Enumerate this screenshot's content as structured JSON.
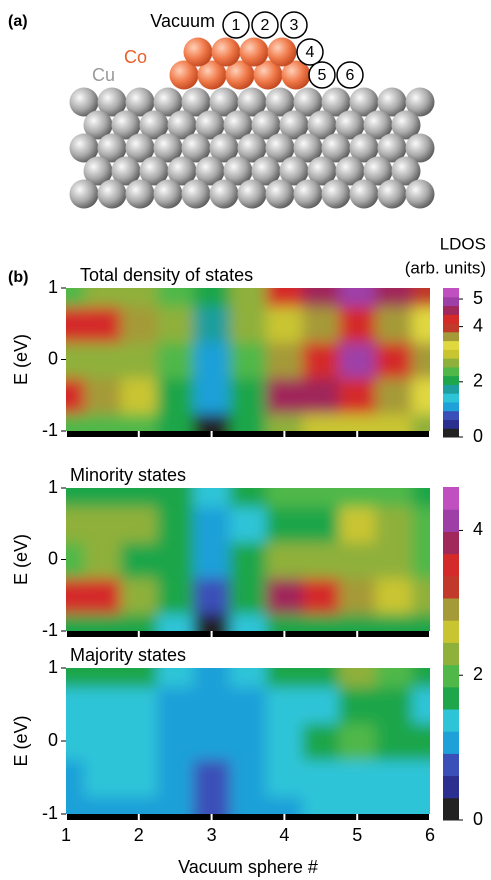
{
  "figure_a": {
    "label": "(a)",
    "vacuum": "Vacuum",
    "co": "Co",
    "cu": "Cu",
    "spheres": [
      "1",
      "2",
      "3",
      "4",
      "5",
      "6"
    ]
  },
  "figure_b_label": "(b)",
  "chart_data": [
    {
      "type": "heatmap",
      "title": "Total density of states",
      "x": [
        1,
        1.5,
        2,
        2.5,
        3,
        3.5,
        4,
        4.5,
        5,
        5.5,
        6
      ],
      "y": [
        -1,
        -0.5,
        0,
        0.5,
        1
      ],
      "z": [
        [
          2.5,
          2.5,
          2.3,
          2.0,
          0.2,
          2.0,
          2.8,
          3.0,
          3.0,
          3.0,
          2.8
        ],
        [
          4.2,
          3.5,
          3.0,
          2.2,
          1.0,
          2.2,
          4.5,
          4.5,
          4.2,
          3.8,
          3.4
        ],
        [
          2.8,
          2.8,
          2.8,
          2.4,
          1.2,
          2.4,
          3.5,
          4.2,
          4.8,
          4.2,
          3.6
        ],
        [
          4.2,
          4.2,
          3.8,
          2.6,
          1.6,
          2.6,
          3.0,
          3.6,
          4.2,
          3.8,
          3.2
        ],
        [
          2.5,
          2.8,
          2.8,
          2.4,
          2.0,
          2.6,
          4.2,
          4.5,
          5.0,
          4.6,
          4.0
        ]
      ],
      "xlim": [
        1,
        6
      ],
      "xticks": [
        1,
        2,
        3,
        4,
        5,
        6
      ],
      "ylim": [
        -1,
        1
      ],
      "yticks": [
        -1,
        0,
        1
      ],
      "ylabel": "E (eV)",
      "colorbar": {
        "title": [
          "LDOS",
          "(arb. units)"
        ],
        "lim": [
          0,
          5.4
        ],
        "ticks": [
          0,
          2,
          4,
          5
        ],
        "colorscale": [
          "#222222",
          "#2b2f8f",
          "#3b4fb8",
          "#1ea0d8",
          "#2ec4d8",
          "#1e9e9e",
          "#1fa64a",
          "#4fb848",
          "#8fb03a",
          "#c9c531",
          "#e0d840",
          "#a59a38",
          "#c0392b",
          "#d42a2a",
          "#a0285a",
          "#9e3fa8",
          "#c050c0"
        ]
      }
    },
    {
      "type": "heatmap",
      "title": "Minority states",
      "x": [
        1,
        1.5,
        2,
        2.5,
        3,
        3.5,
        4,
        4.5,
        5,
        5.5,
        6
      ],
      "y": [
        -1,
        -0.5,
        0,
        0.5,
        1
      ],
      "z": [
        [
          1.6,
          1.6,
          1.6,
          1.4,
          0.3,
          1.5,
          1.8,
          1.8,
          1.8,
          1.8,
          1.8
        ],
        [
          3.6,
          3.5,
          2.4,
          1.6,
          0.8,
          1.6,
          3.8,
          3.6,
          3.0,
          2.6,
          2.3
        ],
        [
          2.0,
          2.2,
          1.8,
          1.7,
          1.0,
          1.6,
          2.2,
          2.4,
          2.4,
          2.2,
          2.0
        ],
        [
          2.2,
          2.2,
          2.2,
          1.6,
          1.2,
          1.5,
          1.8,
          1.8,
          2.6,
          2.2,
          1.9
        ],
        [
          1.8,
          1.8,
          1.8,
          1.7,
          1.4,
          1.6,
          1.9,
          1.9,
          2.0,
          1.9,
          1.8
        ]
      ],
      "xlim": [
        1,
        6
      ],
      "xticks": [
        1,
        2,
        3,
        4,
        5,
        6
      ],
      "ylim": [
        -1,
        1
      ],
      "yticks": [
        -1,
        0,
        1
      ],
      "ylabel": "E (eV)",
      "colorbar": {
        "lim": [
          0,
          4.6
        ],
        "ticks": [
          0,
          2,
          4
        ],
        "colorscale": [
          "#222222",
          "#2b2f8f",
          "#3b4fb8",
          "#1ea0d8",
          "#2ec4d8",
          "#1fa64a",
          "#4fb848",
          "#8fb03a",
          "#c9c531",
          "#a59a38",
          "#c0392b",
          "#d42a2a",
          "#a0285a",
          "#9e3fa8",
          "#c050c0"
        ]
      }
    },
    {
      "type": "heatmap",
      "title": "Majority states",
      "x": [
        1,
        1.5,
        2,
        2.5,
        3,
        3.5,
        4,
        4.5,
        5,
        5.5,
        6
      ],
      "y": [
        -1,
        -0.5,
        0,
        0.5,
        1
      ],
      "z": [
        [
          1.0,
          1.0,
          1.0,
          1.0,
          0.8,
          1.0,
          1.2,
          1.3,
          1.4,
          1.4,
          1.3
        ],
        [
          1.2,
          1.3,
          1.3,
          1.1,
          0.9,
          1.0,
          1.3,
          1.4,
          1.5,
          1.5,
          1.4
        ],
        [
          1.4,
          1.5,
          1.4,
          1.2,
          1.0,
          1.1,
          1.4,
          1.6,
          2.1,
          1.8,
          1.6
        ],
        [
          1.4,
          1.5,
          1.5,
          1.2,
          1.0,
          1.1,
          1.4,
          1.5,
          1.6,
          1.6,
          1.5
        ],
        [
          1.7,
          1.7,
          1.7,
          1.5,
          1.0,
          1.3,
          1.6,
          1.8,
          2.4,
          2.1,
          1.8
        ]
      ],
      "xlim": [
        1,
        6
      ],
      "xticks": [
        1,
        2,
        3,
        4,
        5,
        6
      ],
      "ylim": [
        -1,
        1
      ],
      "yticks": [
        -1,
        0,
        1
      ],
      "ylabel": "E (eV)",
      "xlabel": "Vacuum sphere #"
    }
  ]
}
